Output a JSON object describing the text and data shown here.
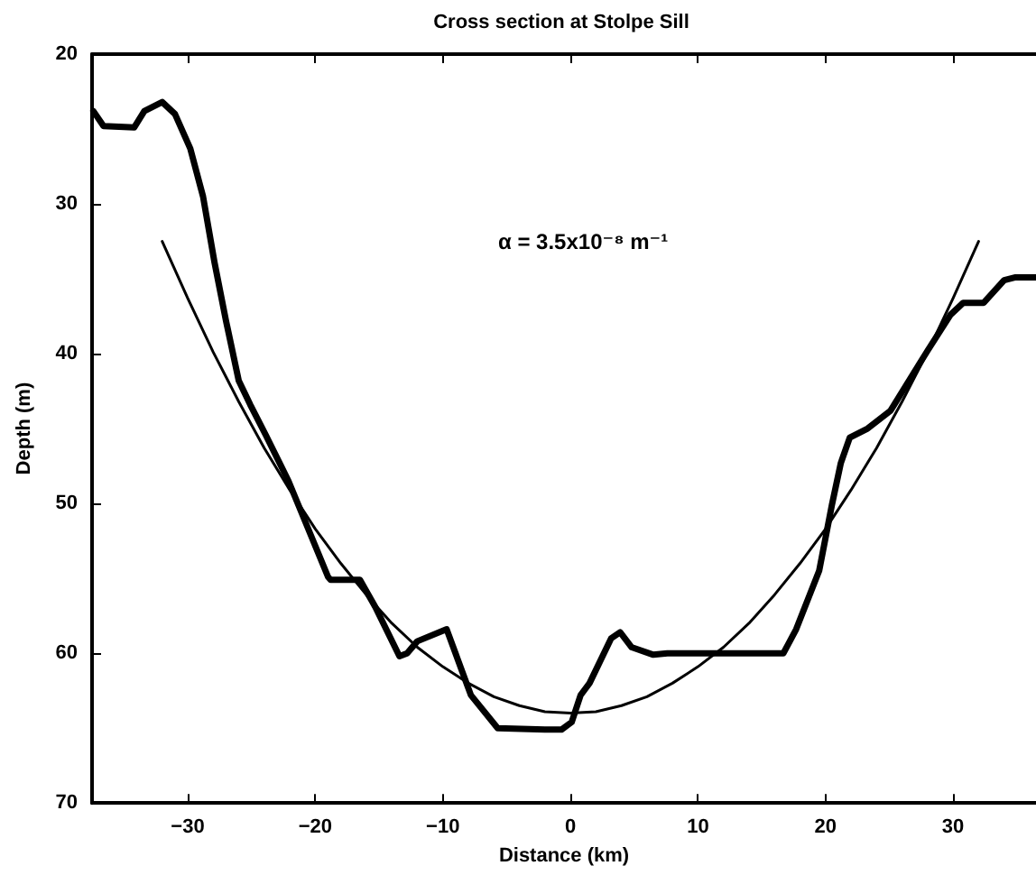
{
  "chart_data": {
    "type": "line",
    "title": "Cross section at Stolpe Sill",
    "xlabel": "Distance (km)",
    "ylabel": "Depth (m)",
    "annotations": [
      "α = 3.5x10⁻⁸ m⁻¹"
    ],
    "xlim": [
      -37.5,
      36.5
    ],
    "xticks": [
      -30,
      -20,
      -10,
      0,
      10,
      20,
      30
    ],
    "ylim": [
      70,
      20
    ],
    "yticks": [
      20,
      30,
      40,
      50,
      60,
      70
    ],
    "grid": false,
    "marker": "none",
    "line_style": "solid",
    "series": [
      {
        "color": "#000000",
        "x": [
          -37.4,
          -36.6,
          -34.2,
          -33.4,
          -32.0,
          -31.0,
          -29.8,
          -28.8,
          -27.9,
          -27.0,
          -26.0,
          -25.1,
          -23.9,
          -22.1,
          -19.0,
          -18.8,
          -16.5,
          -15.3,
          -13.4,
          -12.8,
          -12.0,
          -9.7,
          -7.8,
          -5.7,
          -2.0,
          -0.7,
          0.1,
          0.8,
          1.5,
          3.2,
          3.9,
          4.8,
          6.5,
          7.6,
          16.7,
          17.7,
          19.5,
          20.5,
          21.2,
          21.9,
          23.3,
          25.1,
          28.0,
          29.8,
          30.8,
          32.4,
          34.0,
          34.9,
          36.5
        ],
        "values": [
          23.8,
          24.8,
          24.9,
          23.8,
          23.2,
          24.0,
          26.3,
          29.5,
          33.9,
          37.8,
          41.8,
          43.4,
          45.4,
          48.5,
          54.9,
          55.1,
          55.1,
          56.9,
          60.2,
          60.0,
          59.2,
          58.4,
          62.8,
          65.0,
          65.1,
          65.1,
          64.6,
          62.8,
          62.0,
          59.0,
          58.6,
          59.6,
          60.1,
          60.0,
          60.0,
          58.4,
          54.5,
          50.1,
          47.3,
          45.6,
          45.0,
          43.8,
          39.8,
          37.4,
          36.6,
          36.6,
          35.1,
          34.9,
          34.9
        ]
      },
      {
        "color": "#000000",
        "x": [
          -32,
          -30,
          -28,
          -26,
          -24,
          -22,
          -20,
          -18,
          -16,
          -14,
          -12,
          -10,
          -8,
          -6,
          -4,
          -2,
          0,
          2,
          4,
          6,
          8,
          10,
          12,
          14,
          16,
          18,
          20,
          22,
          24,
          26,
          28,
          30,
          32
        ],
        "values": [
          32.5,
          36.3,
          39.9,
          43.2,
          46.3,
          49.1,
          51.7,
          54.0,
          56.1,
          58.0,
          59.6,
          60.9,
          62.0,
          62.9,
          63.5,
          63.9,
          64.0,
          63.9,
          63.5,
          62.9,
          62.0,
          60.9,
          59.6,
          58.0,
          56.1,
          54.0,
          51.7,
          49.1,
          46.3,
          43.2,
          39.9,
          36.3,
          32.5
        ]
      }
    ]
  }
}
